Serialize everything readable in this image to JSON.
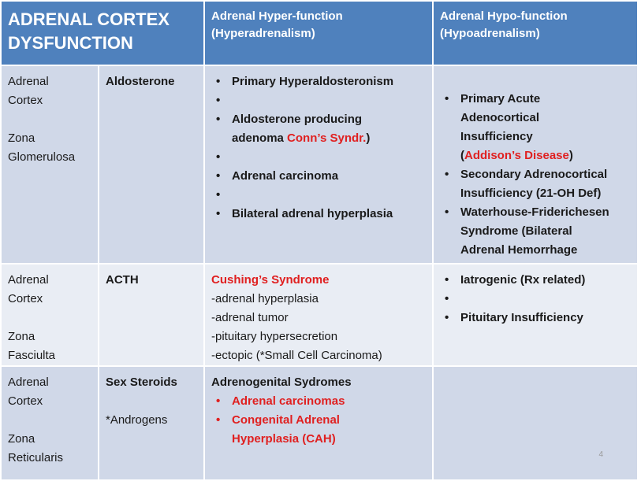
{
  "header": {
    "title": "ADRENAL CORTEX DYSFUNCTION",
    "hyper_line1": "Adrenal  Hyper-function",
    "hyper_line2": "(Hyperadrenalism)",
    "hypo_line1": "Adrenal  Hypo-function",
    "hypo_line2": "(Hypoadrenalism)"
  },
  "rows": [
    {
      "organ_line1": "Adrenal",
      "organ_line2": "Cortex",
      "zone_line1": "Zona",
      "zone_line2": "Glomerulosa",
      "hormone": "Aldosterone",
      "hyper": {
        "item1": "Primary Hyperaldosteronism",
        "item2_a": "Aldosterone producing",
        "item2_b": "adenoma ",
        "item2_red": "Conn’s Syndr.",
        "item2_c": ")",
        "item3": "Adrenal carcinoma",
        "item4": "Bilateral adrenal hyperplasia"
      },
      "hypo": {
        "item1_a": "Primary Acute",
        "item1_b": "Adenocortical",
        "item1_c": "Insufficiency",
        "item1_d_open": "(",
        "item1_d_red": "Addison’s Disease",
        "item1_d_close": ")",
        "item2_a": "Secondary Adrenocortical",
        "item2_b": "Insufficiency (21-OH Def)",
        "item3_a": "Waterhouse-Friderichesen",
        "item3_b": "Syndrome (Bilateral",
        "item3_c": "Adrenal Hemorrhage"
      }
    },
    {
      "organ_line1": "Adrenal",
      "organ_line2": "Cortex",
      "zone_line1": "Zona",
      "zone_line2": "Fasciulta",
      "hormone": "ACTH",
      "hyper": {
        "title": "Cushing’s Syndrome",
        "line1": "-adrenal hyperplasia",
        "line2": "-adrenal tumor",
        "line3": "-pituitary hypersecretion",
        "line4": "-ectopic (*Small Cell Carcinoma)"
      },
      "hypo": {
        "item1": "Iatrogenic (Rx related)",
        "item2": "Pituitary Insufficiency"
      }
    },
    {
      "organ_line1": "Adrenal",
      "organ_line2": "Cortex",
      "zone_line1": "Zona",
      "zone_line2": "Reticularis",
      "hormone": "Sex Steroids",
      "hormone_note": "*Androgens",
      "hyper": {
        "title": "Adrenogenital Sydromes",
        "item1": "Adrenal carcinomas",
        "item2_a": "Congenital Adrenal",
        "item2_b": "Hyperplasia (CAH)"
      }
    }
  ],
  "page_number": "4",
  "colors": {
    "header": "#4f81bd",
    "row_dark": "#d0d8e8",
    "row_light": "#e9edf4",
    "accent_red": "#e02020"
  }
}
